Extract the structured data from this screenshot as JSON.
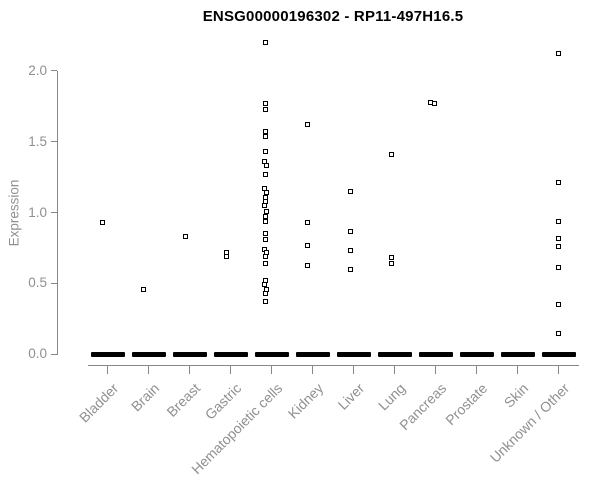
{
  "title": "ENSG00000196302 - RP11-497H16.5",
  "colors": {
    "marker": "#000000",
    "axis": "#878787",
    "tick_label": "#909090",
    "title": "#000000",
    "background": "#ffffff"
  },
  "chart_data": {
    "type": "scatter",
    "subtype": "strip-chart-by-category",
    "title": "ENSG00000196302 - RP11-497H16.5",
    "xlabel": "",
    "ylabel": "Expression",
    "ylim": [
      0.0,
      2.25
    ],
    "y_ticks": [
      0.0,
      0.5,
      1.0,
      1.5,
      2.0
    ],
    "y_tick_labels": [
      "0.0",
      "0.5",
      "1.0",
      "1.5",
      "2.0"
    ],
    "grid": false,
    "legend": "none",
    "marker_style": "small open black square",
    "zero_mass_note": "every category shows a dense mass of samples at expression 0.0 drawn as a thick black dash",
    "categories": [
      "Bladder",
      "Brain",
      "Breast",
      "Gastric",
      "Hematopoietic cells",
      "Kidney",
      "Liver",
      "Lung",
      "Pancreas",
      "Prostate",
      "Skin",
      "Unknown / Other"
    ],
    "series": [
      {
        "category": "Bladder",
        "nonzero_values": [
          0.93
        ],
        "dx": [
          -5
        ],
        "mass_at_zero": true
      },
      {
        "category": "Brain",
        "nonzero_values": [
          0.46
        ],
        "dx": [
          -5
        ],
        "mass_at_zero": true
      },
      {
        "category": "Breast",
        "nonzero_values": [
          0.83
        ],
        "dx": [
          -4
        ],
        "mass_at_zero": true
      },
      {
        "category": "Gastric",
        "nonzero_values": [
          0.72,
          0.69
        ],
        "dx": [
          -4,
          -4
        ],
        "mass_at_zero": true
      },
      {
        "category": "Hematopoietic cells",
        "nonzero_values": [
          2.2,
          1.77,
          1.73,
          1.57,
          1.54,
          1.43,
          1.36,
          1.33,
          1.27,
          1.17,
          1.14,
          1.11,
          1.08,
          1.05,
          1.01,
          0.97,
          0.94,
          0.85,
          0.81,
          0.74,
          0.72,
          0.69,
          0.64,
          0.52,
          0.49,
          0.46,
          0.43,
          0.37
        ],
        "dx": [
          -6,
          -6,
          -6,
          -6,
          -6,
          -6,
          -7,
          -5,
          -6,
          -7,
          -5,
          -6,
          -6,
          -7,
          -5,
          -6,
          -6,
          -6,
          -6,
          -7,
          -5,
          -6,
          -6,
          -6,
          -7,
          -5,
          -6,
          -6
        ],
        "mass_at_zero": true
      },
      {
        "category": "Kidney",
        "nonzero_values": [
          1.62,
          0.93,
          0.77,
          0.63
        ],
        "dx": [
          -5,
          -5,
          -5,
          -5
        ],
        "mass_at_zero": true
      },
      {
        "category": "Liver",
        "nonzero_values": [
          1.15,
          0.87,
          0.73,
          0.6
        ],
        "dx": [
          -3,
          -3,
          -3,
          -3
        ],
        "mass_at_zero": true
      },
      {
        "category": "Lung",
        "nonzero_values": [
          1.41,
          0.68,
          0.64
        ],
        "dx": [
          -3,
          -3,
          -3
        ],
        "mass_at_zero": true
      },
      {
        "category": "Pancreas",
        "nonzero_values": [
          1.78,
          1.77
        ],
        "dx": [
          -5,
          -1
        ],
        "mass_at_zero": true
      },
      {
        "category": "Prostate",
        "nonzero_values": [],
        "dx": [],
        "mass_at_zero": true
      },
      {
        "category": "Skin",
        "nonzero_values": [],
        "dx": [],
        "mass_at_zero": true
      },
      {
        "category": "Unknown / Other",
        "nonzero_values": [
          2.12,
          1.21,
          0.94,
          0.82,
          0.76,
          0.61,
          0.35,
          0.15
        ],
        "dx": [
          0,
          0,
          0,
          0,
          0,
          0,
          0,
          0
        ],
        "mass_at_zero": true
      }
    ]
  }
}
